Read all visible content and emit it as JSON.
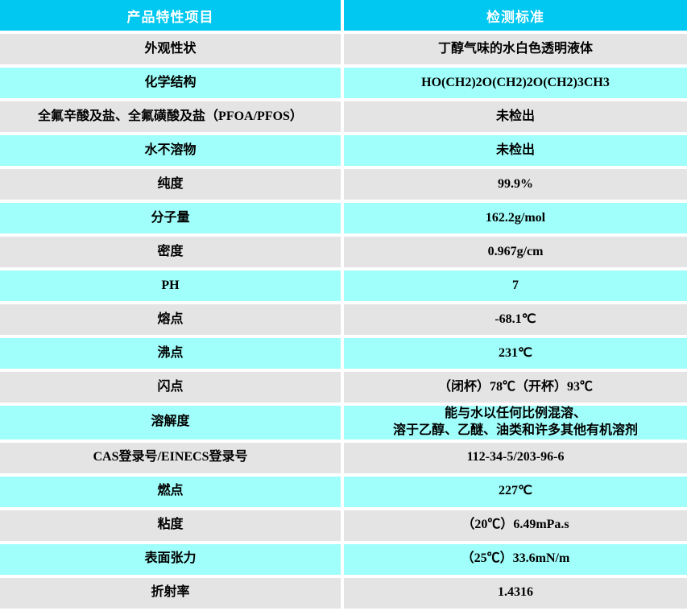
{
  "colors": {
    "header_bg": "#00c8f0",
    "header_text": "#ffffff",
    "row_gray": "#e4e4e4",
    "row_cyan": "#a0fffa",
    "cell_text": "#000000"
  },
  "chart_data": {
    "type": "table",
    "columns": [
      "产品特性项目",
      "检测标准"
    ],
    "rows": [
      {
        "label": "外观性状",
        "value": "丁醇气味的水白色透明液体"
      },
      {
        "label": "化学结构",
        "value": "HO(CH2)2O(CH2)2O(CH2)3CH3"
      },
      {
        "label": "全氟辛酸及盐、全氟磺酸及盐（PFOA/PFOS）",
        "value": "未检出"
      },
      {
        "label": "水不溶物",
        "value": "未检出"
      },
      {
        "label": "纯度",
        "value": "99.9%"
      },
      {
        "label": "分子量",
        "value": "162.2g/mol"
      },
      {
        "label": "密度",
        "value": "0.967g/cm"
      },
      {
        "label": "PH",
        "value": "7"
      },
      {
        "label": "熔点",
        "value": "-68.1℃"
      },
      {
        "label": "沸点",
        "value": "231℃"
      },
      {
        "label": "闪点",
        "value": "（闭杯）78℃（开杯）93℃"
      },
      {
        "label": "溶解度",
        "value": "能与水以任何比例混溶、\n溶于乙醇、乙醚、油类和许多其他有机溶剂"
      },
      {
        "label": "CAS登录号/EINECS登录号",
        "value": "112-34-5/203-96-6"
      },
      {
        "label": "燃点",
        "value": "227℃"
      },
      {
        "label": "粘度",
        "value": "（20℃）6.49mPa.s"
      },
      {
        "label": "表面张力",
        "value": "（25℃）33.6mN/m"
      },
      {
        "label": "折射率",
        "value": "1.4316"
      }
    ]
  }
}
